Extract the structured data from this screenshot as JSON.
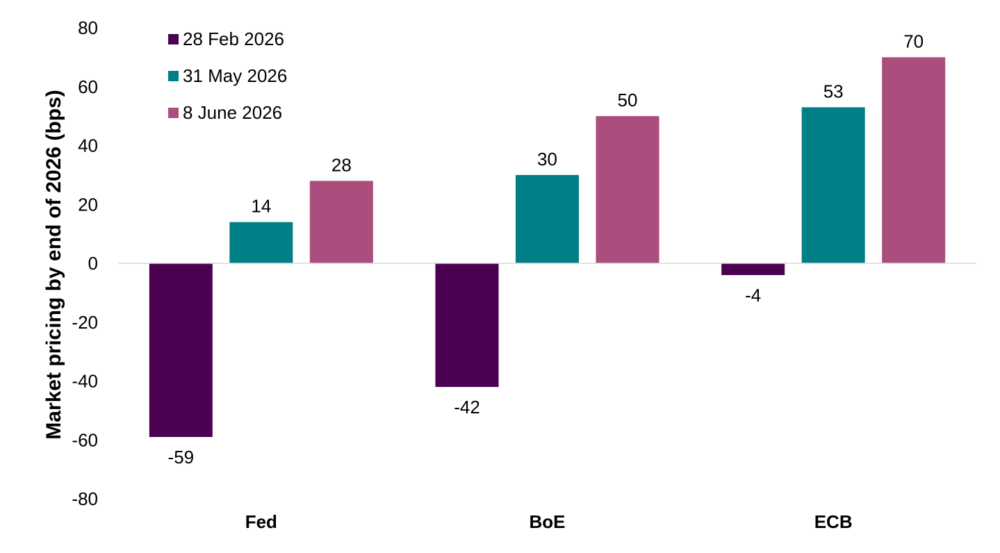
{
  "chart_data": {
    "type": "bar",
    "categories": [
      "Fed",
      "BoE",
      "ECB"
    ],
    "series": [
      {
        "name": "28 Feb 2026",
        "color": "#4a0250",
        "values": [
          -59,
          -42,
          -4
        ]
      },
      {
        "name": "31 May 2026",
        "color": "#008086",
        "values": [
          14,
          30,
          53
        ]
      },
      {
        "name": "8 June 2026",
        "color": "#ab4e7d",
        "values": [
          28,
          50,
          70
        ]
      }
    ],
    "title": "",
    "xlabel": "",
    "ylabel": "Market pricing by end of 2026 (bps)",
    "ylim": [
      -80,
      80
    ],
    "yticks": [
      -80,
      -60,
      -40,
      -20,
      0,
      20,
      40,
      60,
      80
    ],
    "data_labels": true,
    "grid": false,
    "legend_position": "top-left"
  }
}
